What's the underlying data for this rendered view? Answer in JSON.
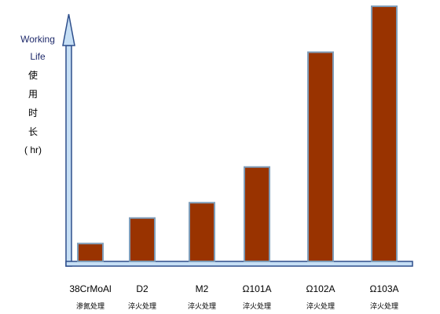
{
  "chart_data": {
    "type": "bar",
    "categories": [
      "38CrMoAl",
      "D2",
      "M2",
      "Ω101A",
      "Ω102A",
      "Ω103A"
    ],
    "sublabels": [
      "渗氮处理",
      "淬火处理",
      "淬火处理",
      "淬火处理",
      "淬火处理",
      "淬火处理"
    ],
    "values": [
      7,
      17,
      23,
      37,
      82,
      100
    ],
    "ylim": [
      0,
      100
    ],
    "ylabel_lines": [
      "Working",
      "Life",
      "使",
      "用",
      "时",
      "长",
      "( hr)"
    ],
    "xlabel": "",
    "title": "",
    "bar_color": "#993300",
    "bar_border_color": "#7f9db9",
    "axis_fill_color": "#c6dff5",
    "axis_border_color": "#2e4f8c",
    "grid": false
  }
}
